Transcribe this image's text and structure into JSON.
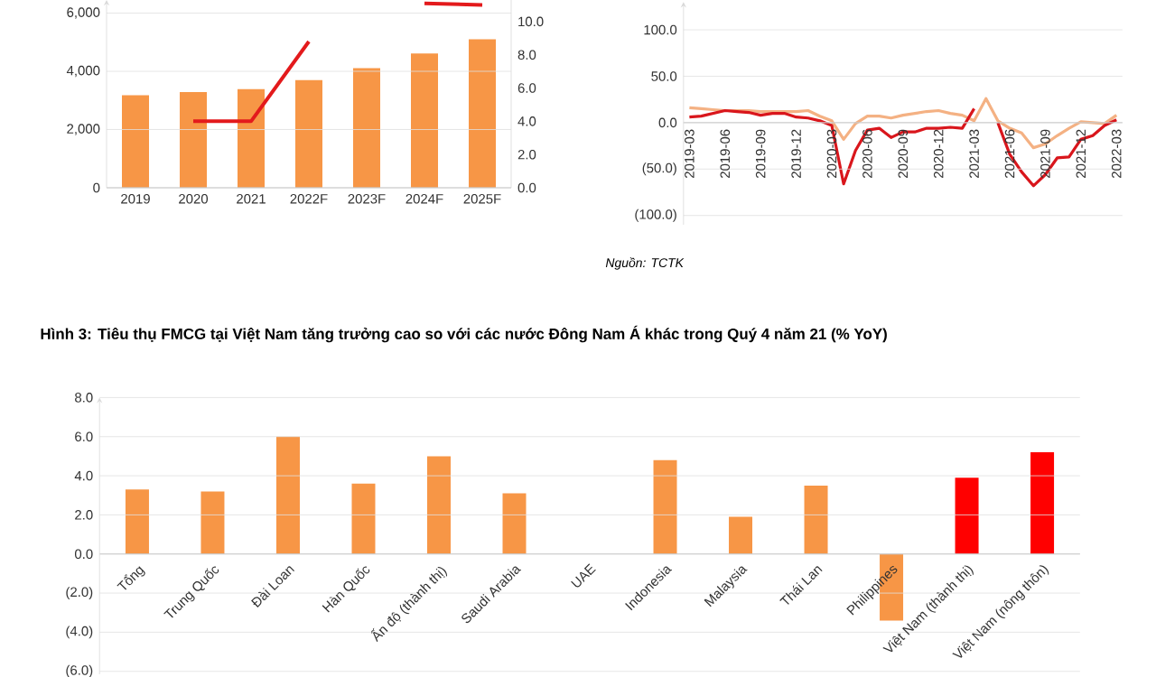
{
  "chart_data": [
    {
      "type": "bar",
      "categories": [
        "2019",
        "2020",
        "2021",
        "2022F",
        "2023F",
        "2024F",
        "2025F"
      ],
      "series": [
        {
          "type": "bar",
          "color": "#f79646",
          "values": [
            3180,
            3290,
            3390,
            3700,
            4110,
            4610,
            5100
          ]
        },
        {
          "type": "line",
          "axis": "y2",
          "color": "#e31a1c",
          "values": [
            null,
            4.0,
            4.0,
            8.8,
            null,
            11.1,
            11.0
          ]
        }
      ],
      "ylim": [
        0,
        6450
      ],
      "yticks": [
        0,
        {
          "value": 2000,
          "label": "2,000"
        },
        {
          "value": 4000,
          "label": "4,000"
        },
        {
          "value": 6000,
          "label": "6,000"
        }
      ],
      "y2lim": [
        0,
        11.3
      ],
      "y2ticks": [
        {
          "value": 0,
          "label": "0.0"
        },
        {
          "value": 2,
          "label": "2.0"
        },
        {
          "value": 4,
          "label": "4.0"
        },
        {
          "value": 6,
          "label": "6.0"
        },
        {
          "value": 8,
          "label": "8.0"
        },
        {
          "value": 10,
          "label": "10.0"
        }
      ],
      "grid": "y"
    },
    {
      "type": "line",
      "categories": [
        "2019-03",
        null,
        null,
        "2019-06",
        null,
        null,
        "2019-09",
        null,
        null,
        "2019-12",
        null,
        null,
        "2020-03",
        null,
        null,
        "2020-06",
        null,
        null,
        "2020-09",
        null,
        null,
        "2020-12",
        null,
        null,
        "2021-03",
        null,
        null,
        "2021-06",
        null,
        null,
        "2021-09",
        null,
        null,
        "2021-12",
        null,
        null,
        "2022-03"
      ],
      "series": [
        {
          "color": "#f4b183",
          "values": [
            16,
            15,
            14,
            13,
            13,
            13,
            12,
            12,
            12,
            12,
            13,
            7,
            2,
            -18,
            -1,
            7,
            7,
            5,
            8,
            10,
            12,
            13,
            10,
            8,
            2,
            26,
            2,
            -6,
            -11,
            -27,
            -23,
            -14,
            -6,
            1,
            0,
            -1,
            8
          ]
        },
        {
          "color": "#d9161c",
          "values": [
            6,
            7,
            10,
            13,
            12,
            11,
            8,
            10,
            10,
            6,
            5,
            2,
            -3,
            -66,
            -30,
            -8,
            -6,
            -16,
            -10,
            -10,
            -6,
            -6,
            -5,
            -6,
            15,
            null,
            0,
            -34,
            -53,
            -68,
            -56,
            -38,
            -37,
            -18,
            -14,
            -3,
            3
          ]
        }
      ],
      "ylim": [
        -110,
        130
      ],
      "yticks": [
        {
          "value": -100,
          "label": "(100.0)"
        },
        {
          "value": -50,
          "label": "(50.0)"
        },
        {
          "value": 0,
          "label": "0.0"
        },
        {
          "value": 50,
          "label": "50.0"
        },
        {
          "value": 100,
          "label": "100.0"
        }
      ],
      "grid": "y",
      "annotations": [
        "Nguồn: TCTK"
      ]
    },
    {
      "type": "bar",
      "title": "Hình 3: Tiêu thụ FMCG tại Việt Nam tăng trưởng cao so với các nước Đông Nam Á khác trong Quý 4 năm 21 (% YoY)",
      "categories": [
        "Tổng",
        "Trung Quốc",
        "Đài Loan",
        "Hàn Quốc",
        "Ấn độ (thành thị)",
        "Saudi Arabia",
        "UAE",
        "Indonesia",
        "Malaysia",
        "Thái Lan",
        "Philippines",
        "Việt Nam (thành thị)",
        "Việt Nam (nông thôn)"
      ],
      "values": [
        3.3,
        3.2,
        6.0,
        3.6,
        5.0,
        3.1,
        null,
        4.8,
        1.9,
        3.5,
        -3.4,
        3.9,
        5.2
      ],
      "colors": [
        "#f79646",
        "#f79646",
        "#f79646",
        "#f79646",
        "#f79646",
        "#f79646",
        "#f79646",
        "#f79646",
        "#f79646",
        "#f79646",
        "#f79646",
        "#ff0000",
        "#ff0000"
      ],
      "ylim": [
        -6.15,
        8
      ],
      "yticks": [
        {
          "value": -6,
          "label": "(6.0)"
        },
        {
          "value": -4,
          "label": "(4.0)"
        },
        {
          "value": -2,
          "label": "(2.0)"
        },
        {
          "value": 0,
          "label": "0.0"
        },
        {
          "value": 2,
          "label": "2.0"
        },
        {
          "value": 4,
          "label": "4.0"
        },
        {
          "value": 6,
          "label": "6.0"
        },
        {
          "value": 8,
          "label": "8.0"
        }
      ],
      "grid": "y"
    }
  ]
}
